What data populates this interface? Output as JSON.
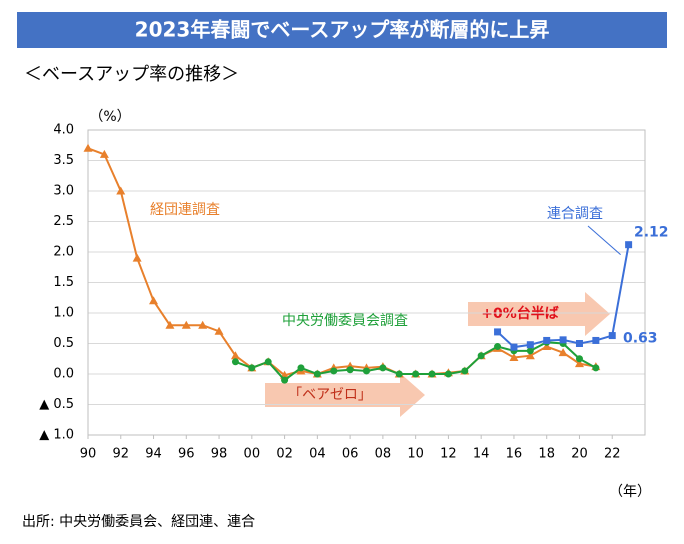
{
  "chart_data": {
    "type": "line",
    "title": "2023年春闘でベースアップ率が断層的に上昇",
    "subtitle": "＜ベースアップ率の推移＞",
    "y_unit": "（%）",
    "x_unit": "（年）",
    "source": "出所: 中央労働委員会、経団連、連合",
    "xlim": [
      1990,
      2024
    ],
    "xticks": [
      {
        "value": 1990,
        "label": "90"
      },
      {
        "value": 1992,
        "label": "92"
      },
      {
        "value": 1994,
        "label": "94"
      },
      {
        "value": 1996,
        "label": "96"
      },
      {
        "value": 1998,
        "label": "98"
      },
      {
        "value": 2000,
        "label": "00"
      },
      {
        "value": 2002,
        "label": "02"
      },
      {
        "value": 2004,
        "label": "04"
      },
      {
        "value": 2006,
        "label": "06"
      },
      {
        "value": 2008,
        "label": "08"
      },
      {
        "value": 2010,
        "label": "10"
      },
      {
        "value": 2012,
        "label": "12"
      },
      {
        "value": 2014,
        "label": "14"
      },
      {
        "value": 2016,
        "label": "16"
      },
      {
        "value": 2018,
        "label": "18"
      },
      {
        "value": 2020,
        "label": "20"
      },
      {
        "value": 2022,
        "label": "22"
      }
    ],
    "ylim": [
      -1,
      4
    ],
    "yticks": [
      {
        "value": 4,
        "label": "4.0"
      },
      {
        "value": 3.5,
        "label": "3.5"
      },
      {
        "value": 3,
        "label": "3.0"
      },
      {
        "value": 2.5,
        "label": "2.5"
      },
      {
        "value": 2,
        "label": "2.0"
      },
      {
        "value": 1.5,
        "label": "1.5"
      },
      {
        "value": 1,
        "label": "1.0"
      },
      {
        "value": 0.5,
        "label": "0.5"
      },
      {
        "value": 0,
        "label": "0.0"
      },
      {
        "value": -0.5,
        "label": "▲ 0.5"
      },
      {
        "value": -1,
        "label": "▲ 1.0"
      }
    ],
    "grid": true,
    "series": [
      {
        "name": "経団連調査",
        "color": "#e8802c",
        "marker": "triangle",
        "x": [
          1990,
          1991,
          1992,
          1993,
          1994,
          1995,
          1996,
          1997,
          1998,
          1999,
          2000,
          2001,
          2002,
          2003,
          2004,
          2005,
          2006,
          2007,
          2008,
          2009,
          2010,
          2011,
          2012,
          2013,
          2014,
          2015,
          2016,
          2017,
          2018,
          2019,
          2020,
          2021
        ],
        "values": [
          3.7,
          3.6,
          3.0,
          1.9,
          1.2,
          0.8,
          0.8,
          0.8,
          0.7,
          0.3,
          0.1,
          0.2,
          -0.02,
          0.05,
          0.0,
          0.1,
          0.13,
          0.1,
          0.12,
          0.0,
          0.0,
          0.0,
          0.02,
          0.05,
          0.3,
          0.42,
          0.27,
          0.3,
          0.45,
          0.35,
          0.17,
          0.12
        ]
      },
      {
        "name": "中央労働委員会調査",
        "color": "#1fa03a",
        "marker": "circle",
        "x": [
          1999,
          2000,
          2001,
          2002,
          2003,
          2004,
          2005,
          2006,
          2007,
          2008,
          2009,
          2010,
          2011,
          2012,
          2013,
          2014,
          2015,
          2016,
          2017,
          2018,
          2019,
          2020,
          2021
        ],
        "values": [
          0.2,
          0.1,
          0.2,
          -0.1,
          0.1,
          0.0,
          0.05,
          0.07,
          0.05,
          0.1,
          0.0,
          0.0,
          0.0,
          0.0,
          0.05,
          0.3,
          0.45,
          0.38,
          0.38,
          0.52,
          0.5,
          0.25,
          0.1
        ]
      },
      {
        "name": "連合調査",
        "color": "#3b6fd8",
        "marker": "square",
        "x": [
          2015,
          2016,
          2017,
          2018,
          2019,
          2020,
          2021,
          2022,
          2023
        ],
        "values": [
          0.69,
          0.44,
          0.48,
          0.55,
          0.56,
          0.5,
          0.55,
          0.63,
          2.12
        ]
      }
    ],
    "annotations": [
      "+0%台半ば",
      "「ベアゼロ」"
    ]
  }
}
